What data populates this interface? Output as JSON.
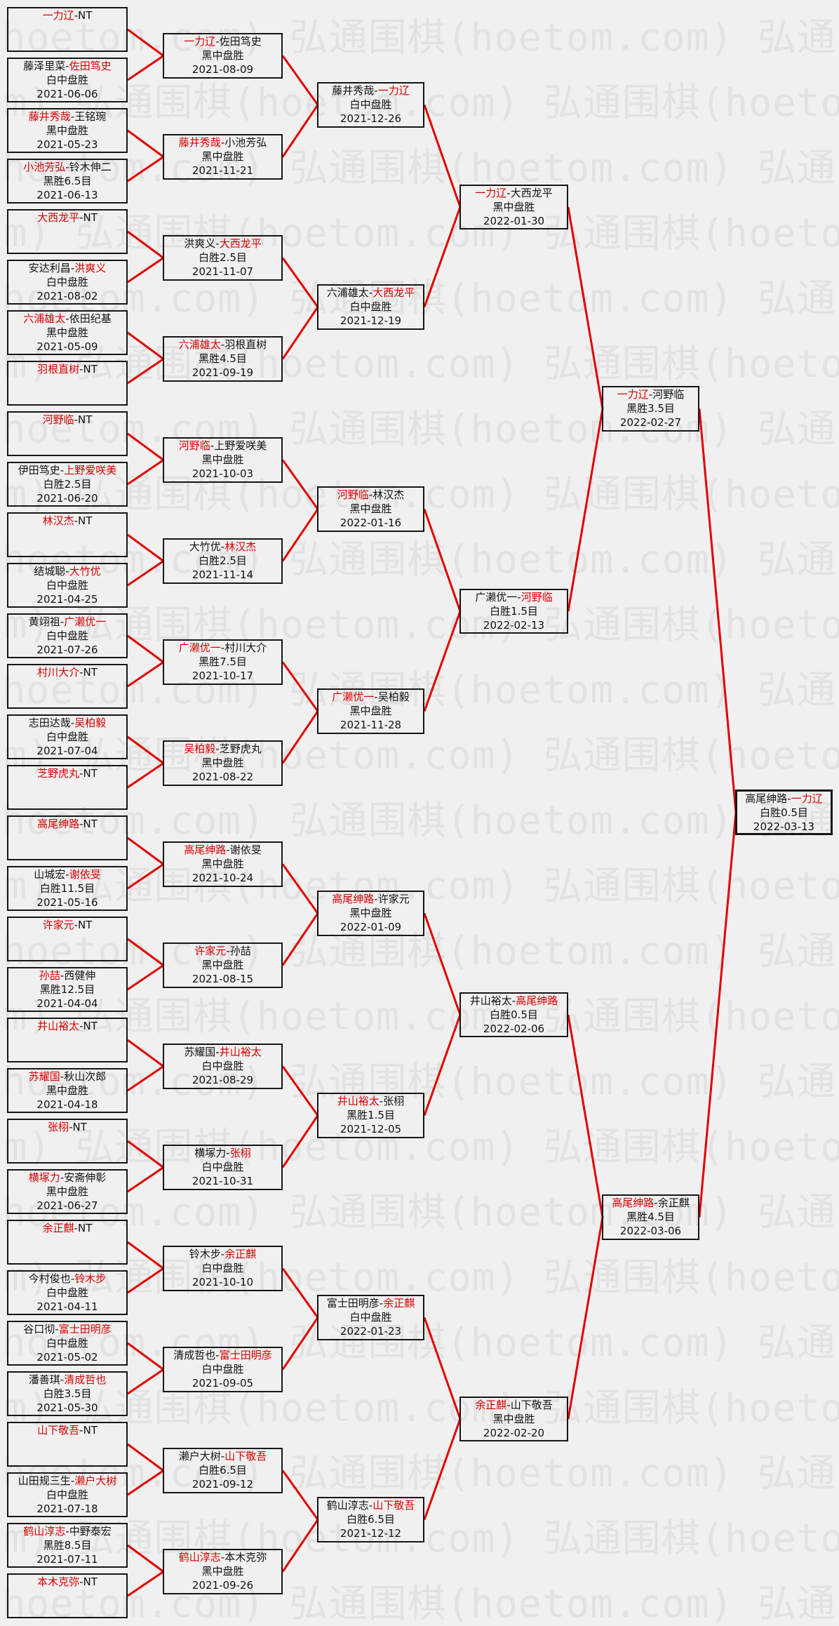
{
  "watermark": "弘通围棋(hoetom.com)",
  "colors": {
    "background": "#f0f0f0",
    "watermark": "#e2e2e2",
    "line": "#e30000",
    "winner": "#d80000",
    "border": "#161616"
  },
  "bracket": {
    "separator": "-",
    "bye_label": "NT",
    "rounds": [
      {
        "matches": [
          {
            "left": "一力辽",
            "right": "NT",
            "winner": "left",
            "result": "",
            "date": ""
          },
          {
            "left": "藤泽里菜",
            "right": "佐田笃史",
            "winner": "right",
            "result": "白中盘胜",
            "date": "2021-06-06"
          },
          {
            "left": "藤井秀哉",
            "right": "王铭琬",
            "winner": "left",
            "result": "黑中盘胜",
            "date": "2021-05-23"
          },
          {
            "left": "小池芳弘",
            "right": "铃木伸二",
            "winner": "left",
            "result": "黑胜6.5目",
            "date": "2021-06-13"
          },
          {
            "left": "大西龙平",
            "right": "NT",
            "winner": "left",
            "result": "",
            "date": ""
          },
          {
            "left": "安达利昌",
            "right": "洪爽义",
            "winner": "right",
            "result": "白中盘胜",
            "date": "2021-08-02"
          },
          {
            "left": "六浦雄太",
            "right": "依田纪基",
            "winner": "left",
            "result": "黑中盘胜",
            "date": "2021-05-09"
          },
          {
            "left": "羽根直树",
            "right": "NT",
            "winner": "left",
            "result": "",
            "date": ""
          },
          {
            "left": "河野临",
            "right": "NT",
            "winner": "left",
            "result": "",
            "date": ""
          },
          {
            "left": "伊田笃史",
            "right": "上野爱咲美",
            "winner": "right",
            "result": "白胜2.5目",
            "date": "2021-06-20"
          },
          {
            "left": "林汉杰",
            "right": "NT",
            "winner": "left",
            "result": "",
            "date": ""
          },
          {
            "left": "结城聪",
            "right": "大竹优",
            "winner": "right",
            "result": "白中盘胜",
            "date": "2021-04-25"
          },
          {
            "left": "黄翊祖",
            "right": "广濑优一",
            "winner": "right",
            "result": "白中盘胜",
            "date": "2021-07-26"
          },
          {
            "left": "村川大介",
            "right": "NT",
            "winner": "left",
            "result": "",
            "date": ""
          },
          {
            "left": "志田达哉",
            "right": "吴柏毅",
            "winner": "right",
            "result": "白中盘胜",
            "date": "2021-07-04"
          },
          {
            "left": "芝野虎丸",
            "right": "NT",
            "winner": "left",
            "result": "",
            "date": ""
          },
          {
            "left": "高尾绅路",
            "right": "NT",
            "winner": "left",
            "result": "",
            "date": ""
          },
          {
            "left": "山城宏",
            "right": "谢依旻",
            "winner": "right",
            "result": "白胜11.5目",
            "date": "2021-05-16"
          },
          {
            "left": "许家元",
            "right": "NT",
            "winner": "left",
            "result": "",
            "date": ""
          },
          {
            "left": "孙喆",
            "right": "西健伸",
            "winner": "left",
            "result": "黑胜12.5目",
            "date": "2021-04-04"
          },
          {
            "left": "井山裕太",
            "right": "NT",
            "winner": "left",
            "result": "",
            "date": ""
          },
          {
            "left": "苏耀国",
            "right": "秋山次郎",
            "winner": "left",
            "result": "黑中盘胜",
            "date": "2021-04-18"
          },
          {
            "left": "张栩",
            "right": "NT",
            "winner": "left",
            "result": "",
            "date": ""
          },
          {
            "left": "横塚力",
            "right": "安斋伸彰",
            "winner": "left",
            "result": "黑中盘胜",
            "date": "2021-06-27"
          },
          {
            "left": "余正麒",
            "right": "NT",
            "winner": "left",
            "result": "",
            "date": ""
          },
          {
            "left": "今村俊也",
            "right": "铃木步",
            "winner": "right",
            "result": "白中盘胜",
            "date": "2021-04-11"
          },
          {
            "left": "谷口彻",
            "right": "富士田明彦",
            "winner": "right",
            "result": "白中盘胜",
            "date": "2021-05-02"
          },
          {
            "left": "潘善琪",
            "right": "清成哲也",
            "winner": "right",
            "result": "白胜3.5目",
            "date": "2021-05-30"
          },
          {
            "left": "山下敬吾",
            "right": "NT",
            "winner": "left",
            "result": "",
            "date": ""
          },
          {
            "left": "山田规三生",
            "right": "濑户大树",
            "winner": "right",
            "result": "白中盘胜",
            "date": "2021-07-18"
          },
          {
            "left": "鹤山淳志",
            "right": "中野泰宏",
            "winner": "left",
            "result": "黑胜8.5目",
            "date": "2021-07-11"
          },
          {
            "left": "本木克弥",
            "right": "NT",
            "winner": "left",
            "result": "",
            "date": ""
          }
        ]
      },
      {
        "matches": [
          {
            "left": "一力辽",
            "right": "佐田笃史",
            "winner": "left",
            "result": "黑中盘胜",
            "date": "2021-08-09"
          },
          {
            "left": "藤井秀哉",
            "right": "小池芳弘",
            "winner": "left",
            "result": "黑中盘胜",
            "date": "2021-11-21"
          },
          {
            "left": "洪爽义",
            "right": "大西龙平",
            "winner": "right",
            "result": "白胜2.5目",
            "date": "2021-11-07"
          },
          {
            "left": "六浦雄太",
            "right": "羽根直树",
            "winner": "left",
            "result": "黑胜4.5目",
            "date": "2021-09-19"
          },
          {
            "left": "河野临",
            "right": "上野爱咲美",
            "winner": "left",
            "result": "黑中盘胜",
            "date": "2021-10-03"
          },
          {
            "left": "大竹优",
            "right": "林汉杰",
            "winner": "right",
            "result": "白胜2.5目",
            "date": "2021-11-14"
          },
          {
            "left": "广濑优一",
            "right": "村川大介",
            "winner": "left",
            "result": "黑胜7.5目",
            "date": "2021-10-17"
          },
          {
            "left": "吴柏毅",
            "right": "芝野虎丸",
            "winner": "left",
            "result": "黑中盘胜",
            "date": "2021-08-22"
          },
          {
            "left": "高尾绅路",
            "right": "谢依旻",
            "winner": "left",
            "result": "黑中盘胜",
            "date": "2021-10-24"
          },
          {
            "left": "许家元",
            "right": "孙喆",
            "winner": "left",
            "result": "黑中盘胜",
            "date": "2021-08-15"
          },
          {
            "left": "苏耀国",
            "right": "井山裕太",
            "winner": "right",
            "result": "白中盘胜",
            "date": "2021-08-29"
          },
          {
            "left": "横塚力",
            "right": "张栩",
            "winner": "right",
            "result": "白中盘胜",
            "date": "2021-10-31"
          },
          {
            "left": "铃木步",
            "right": "余正麒",
            "winner": "right",
            "result": "白中盘胜",
            "date": "2021-10-10"
          },
          {
            "left": "清成哲也",
            "right": "富士田明彦",
            "winner": "right",
            "result": "白中盘胜",
            "date": "2021-09-05"
          },
          {
            "left": "濑户大树",
            "right": "山下敬吾",
            "winner": "right",
            "result": "白胜6.5目",
            "date": "2021-09-12"
          },
          {
            "left": "鹤山淳志",
            "right": "本木克弥",
            "winner": "left",
            "result": "黑中盘胜",
            "date": "2021-09-26"
          }
        ]
      },
      {
        "matches": [
          {
            "left": "藤井秀哉",
            "right": "一力辽",
            "winner": "right",
            "result": "白中盘胜",
            "date": "2021-12-26"
          },
          {
            "left": "六浦雄太",
            "right": "大西龙平",
            "winner": "right",
            "result": "白中盘胜",
            "date": "2021-12-19"
          },
          {
            "left": "河野临",
            "right": "林汉杰",
            "winner": "left",
            "result": "黑中盘胜",
            "date": "2022-01-16"
          },
          {
            "left": "广濑优一",
            "right": "吴柏毅",
            "winner": "left",
            "result": "黑中盘胜",
            "date": "2021-11-28"
          },
          {
            "left": "高尾绅路",
            "right": "许家元",
            "winner": "left",
            "result": "黑中盘胜",
            "date": "2022-01-09"
          },
          {
            "left": "井山裕太",
            "right": "张栩",
            "winner": "left",
            "result": "黑胜1.5目",
            "date": "2021-12-05"
          },
          {
            "left": "富士田明彦",
            "right": "余正麒",
            "winner": "right",
            "result": "白中盘胜",
            "date": "2022-01-23"
          },
          {
            "left": "鹤山淳志",
            "right": "山下敬吾",
            "winner": "right",
            "result": "白胜6.5目",
            "date": "2021-12-12"
          }
        ]
      },
      {
        "matches": [
          {
            "left": "一力辽",
            "right": "大西龙平",
            "winner": "left",
            "result": "黑中盘胜",
            "date": "2022-01-30"
          },
          {
            "left": "广濑优一",
            "right": "河野临",
            "winner": "right",
            "result": "白胜1.5目",
            "date": "2022-02-13"
          },
          {
            "left": "井山裕太",
            "right": "高尾绅路",
            "winner": "right",
            "result": "白胜0.5目",
            "date": "2022-02-06"
          },
          {
            "left": "余正麒",
            "right": "山下敬吾",
            "winner": "left",
            "result": "黑中盘胜",
            "date": "2022-02-20"
          }
        ]
      },
      {
        "matches": [
          {
            "left": "一力辽",
            "right": "河野临",
            "winner": "left",
            "result": "黑胜3.5目",
            "date": "2022-02-27"
          },
          {
            "left": "高尾绅路",
            "right": "余正麒",
            "winner": "left",
            "result": "黑胜4.5目",
            "date": "2022-03-06"
          }
        ]
      },
      {
        "matches": [
          {
            "left": "高尾绅路",
            "right": "一力辽",
            "winner": "right",
            "result": "白胜0.5目",
            "date": "2022-03-13"
          }
        ]
      }
    ]
  }
}
